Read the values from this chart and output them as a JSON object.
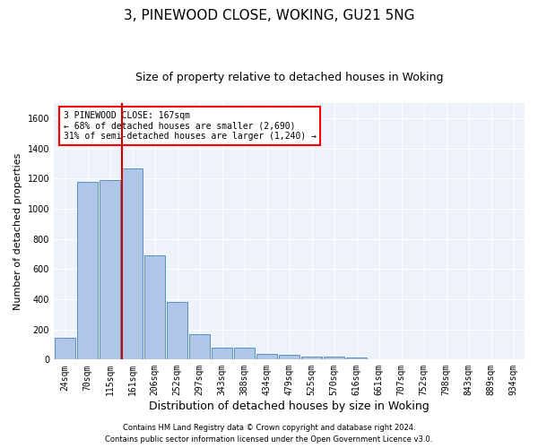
{
  "title": "3, PINEWOOD CLOSE, WOKING, GU21 5NG",
  "subtitle": "Size of property relative to detached houses in Woking",
  "xlabel": "Distribution of detached houses by size in Woking",
  "ylabel": "Number of detached properties",
  "categories": [
    "24sqm",
    "70sqm",
    "115sqm",
    "161sqm",
    "206sqm",
    "252sqm",
    "297sqm",
    "343sqm",
    "388sqm",
    "434sqm",
    "479sqm",
    "525sqm",
    "570sqm",
    "616sqm",
    "661sqm",
    "707sqm",
    "752sqm",
    "798sqm",
    "843sqm",
    "889sqm",
    "934sqm"
  ],
  "values": [
    145,
    1180,
    1190,
    1265,
    690,
    380,
    170,
    82,
    82,
    38,
    30,
    22,
    22,
    15,
    0,
    0,
    0,
    0,
    0,
    0,
    0
  ],
  "bar_color": "#aec6e8",
  "bar_edge_color": "#5a8fc0",
  "annotation_line1": "3 PINEWOOD CLOSE: 167sqm",
  "annotation_line2": "← 68% of detached houses are smaller (2,690)",
  "annotation_line3": "31% of semi-detached houses are larger (1,240) →",
  "vline_color": "#cc0000",
  "footer1": "Contains HM Land Registry data © Crown copyright and database right 2024.",
  "footer2": "Contains public sector information licensed under the Open Government Licence v3.0.",
  "ylim": [
    0,
    1700
  ],
  "yticks": [
    0,
    200,
    400,
    600,
    800,
    1000,
    1200,
    1400,
    1600
  ],
  "bg_color": "#eef2fa",
  "grid_color": "#ffffff",
  "title_fontsize": 11,
  "subtitle_fontsize": 9,
  "ylabel_fontsize": 8,
  "xlabel_fontsize": 9,
  "tick_fontsize": 7,
  "annot_fontsize": 7,
  "footer_fontsize": 6
}
